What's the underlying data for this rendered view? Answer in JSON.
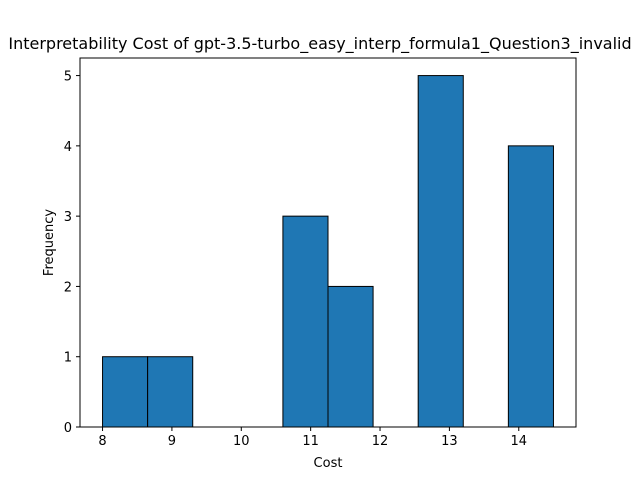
{
  "chart_data": {
    "type": "bar",
    "title": "Interpretability Cost of gpt-3.5-turbo_easy_interp_formula1_Question3_invalid",
    "xlabel": "Cost",
    "ylabel": "Frequency",
    "xlim": [
      7.675,
      14.825
    ],
    "ylim": [
      0,
      5.25
    ],
    "xticks": [
      8,
      9,
      10,
      11,
      12,
      13,
      14
    ],
    "yticks": [
      0,
      1,
      2,
      3,
      4,
      5
    ],
    "bins": [
      {
        "start": 8.0,
        "end": 8.65,
        "count": 1
      },
      {
        "start": 8.65,
        "end": 9.3,
        "count": 1
      },
      {
        "start": 9.3,
        "end": 9.95,
        "count": 0
      },
      {
        "start": 9.95,
        "end": 10.6,
        "count": 0
      },
      {
        "start": 10.6,
        "end": 11.25,
        "count": 3
      },
      {
        "start": 11.25,
        "end": 11.9,
        "count": 2
      },
      {
        "start": 11.9,
        "end": 12.55,
        "count": 0
      },
      {
        "start": 12.55,
        "end": 13.2,
        "count": 5
      },
      {
        "start": 13.2,
        "end": 13.85,
        "count": 0
      },
      {
        "start": 13.85,
        "end": 14.5,
        "count": 4
      }
    ],
    "bar_color": "#1f77b4",
    "edge_color": "#000000",
    "grid": false,
    "legend": "none"
  }
}
